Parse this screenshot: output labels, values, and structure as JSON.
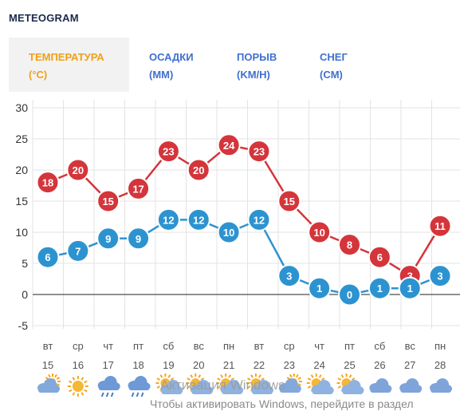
{
  "header": {
    "title": "METEOGRAM"
  },
  "tabs": [
    {
      "line1": "ТЕМПЕРАТУРА",
      "line2": "(°C)",
      "active": true
    },
    {
      "line1": "ОСАДКИ",
      "line2": "(MM)",
      "active": false
    },
    {
      "line1": "ПОРЫВ",
      "line2": "(KM/H)",
      "active": false
    },
    {
      "line1": "СНЕГ",
      "line2": "(CM)",
      "active": false
    }
  ],
  "chart_data": {
    "type": "line",
    "y_ticks": [
      "30",
      "25",
      "20",
      "15",
      "10",
      "5",
      "0",
      "-5"
    ],
    "ylim": [
      -5,
      30
    ],
    "days": [
      "вт",
      "ср",
      "чт",
      "пт",
      "сб",
      "вс",
      "пн",
      "вт",
      "ср",
      "чт",
      "пт",
      "сб",
      "вс",
      "пн"
    ],
    "dates": [
      "15",
      "16",
      "17",
      "18",
      "19",
      "20",
      "21",
      "22",
      "23",
      "24",
      "25",
      "26",
      "27",
      "28"
    ],
    "series": [
      {
        "color": "#d4353b",
        "values": [
          18,
          20,
          15,
          17,
          23,
          20,
          24,
          23,
          15,
          10,
          8,
          6,
          3,
          11
        ]
      },
      {
        "color": "#2d93d0",
        "values": [
          6,
          7,
          9,
          9,
          12,
          12,
          10,
          12,
          3,
          1,
          0,
          1,
          1,
          3
        ]
      }
    ],
    "weather_icons": [
      "cloud-sun-icon",
      "sun-icon",
      "cloud-rain-icon",
      "cloud-rain-icon",
      "sun-cloud-icon",
      "sun-cloud-icon",
      "sun-cloud-icon",
      "sun-cloud-icon",
      "cloud-sun-icon",
      "sun-cloud-icon",
      "sun-cloud-icon",
      "cloud-icon",
      "cloud-icon",
      "cloud-icon"
    ],
    "grid": true
  },
  "watermark": {
    "line1": "Активация Windows",
    "line2": "Чтобы активировать Windows, перейдите в раздел"
  }
}
